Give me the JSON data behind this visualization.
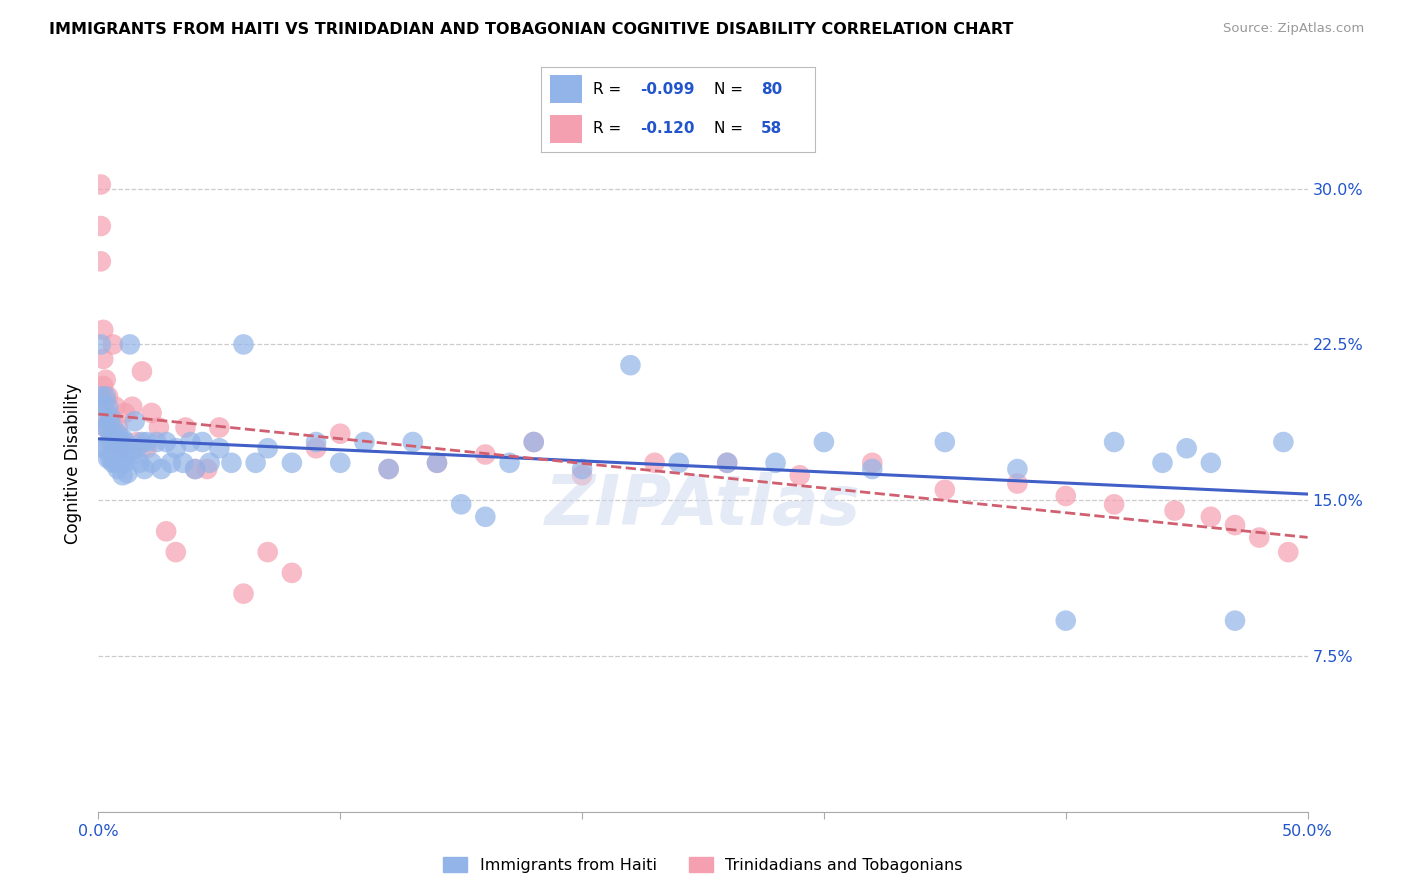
{
  "title": "IMMIGRANTS FROM HAITI VS TRINIDADIAN AND TOBAGONIAN COGNITIVE DISABILITY CORRELATION CHART",
  "source": "Source: ZipAtlas.com",
  "ylabel": "Cognitive Disability",
  "ytick_labels": [
    "7.5%",
    "15.0%",
    "22.5%",
    "30.0%"
  ],
  "ytick_values": [
    0.075,
    0.15,
    0.225,
    0.3
  ],
  "xtick_values": [
    0.0,
    0.1,
    0.2,
    0.3,
    0.4,
    0.5
  ],
  "xtick_labels_show": [
    "0.0%",
    "",
    "",
    "",
    "",
    "50.0%"
  ],
  "xmin": 0.0,
  "xmax": 0.5,
  "ymin": 0.0,
  "ymax": 0.335,
  "color_haiti": "#92b4e8",
  "color_tt": "#f4a0b0",
  "color_haiti_line": "#4060c8",
  "color_tt_line": "#d06070",
  "haiti_x": [
    0.001,
    0.001,
    0.002,
    0.002,
    0.002,
    0.003,
    0.003,
    0.003,
    0.004,
    0.004,
    0.004,
    0.005,
    0.005,
    0.005,
    0.006,
    0.006,
    0.006,
    0.007,
    0.007,
    0.008,
    0.008,
    0.009,
    0.009,
    0.01,
    0.01,
    0.011,
    0.011,
    0.012,
    0.012,
    0.013,
    0.014,
    0.015,
    0.016,
    0.017,
    0.018,
    0.019,
    0.02,
    0.022,
    0.024,
    0.026,
    0.028,
    0.03,
    0.032,
    0.035,
    0.038,
    0.04,
    0.043,
    0.046,
    0.05,
    0.055,
    0.06,
    0.065,
    0.07,
    0.08,
    0.09,
    0.1,
    0.11,
    0.12,
    0.13,
    0.14,
    0.15,
    0.16,
    0.17,
    0.18,
    0.2,
    0.22,
    0.24,
    0.26,
    0.28,
    0.3,
    0.32,
    0.35,
    0.38,
    0.4,
    0.42,
    0.44,
    0.45,
    0.46,
    0.47,
    0.49
  ],
  "haiti_y": [
    0.225,
    0.2,
    0.195,
    0.19,
    0.175,
    0.2,
    0.185,
    0.175,
    0.195,
    0.185,
    0.17,
    0.19,
    0.18,
    0.17,
    0.185,
    0.175,
    0.168,
    0.178,
    0.168,
    0.182,
    0.165,
    0.178,
    0.168,
    0.18,
    0.162,
    0.178,
    0.168,
    0.172,
    0.163,
    0.225,
    0.172,
    0.188,
    0.175,
    0.168,
    0.178,
    0.165,
    0.178,
    0.168,
    0.178,
    0.165,
    0.178,
    0.168,
    0.175,
    0.168,
    0.178,
    0.165,
    0.178,
    0.168,
    0.175,
    0.168,
    0.225,
    0.168,
    0.175,
    0.168,
    0.178,
    0.168,
    0.178,
    0.165,
    0.178,
    0.168,
    0.148,
    0.142,
    0.168,
    0.178,
    0.165,
    0.215,
    0.168,
    0.168,
    0.168,
    0.178,
    0.165,
    0.178,
    0.165,
    0.092,
    0.178,
    0.168,
    0.175,
    0.168,
    0.092,
    0.178
  ],
  "tt_x": [
    0.001,
    0.001,
    0.001,
    0.002,
    0.002,
    0.002,
    0.003,
    0.003,
    0.003,
    0.004,
    0.004,
    0.005,
    0.005,
    0.006,
    0.006,
    0.007,
    0.007,
    0.008,
    0.008,
    0.009,
    0.01,
    0.011,
    0.012,
    0.014,
    0.016,
    0.018,
    0.02,
    0.022,
    0.025,
    0.028,
    0.032,
    0.036,
    0.04,
    0.045,
    0.05,
    0.06,
    0.07,
    0.08,
    0.09,
    0.1,
    0.12,
    0.14,
    0.16,
    0.18,
    0.2,
    0.23,
    0.26,
    0.29,
    0.32,
    0.35,
    0.38,
    0.4,
    0.42,
    0.445,
    0.46,
    0.47,
    0.48,
    0.492
  ],
  "tt_y": [
    0.302,
    0.282,
    0.265,
    0.232,
    0.218,
    0.205,
    0.208,
    0.198,
    0.185,
    0.2,
    0.188,
    0.188,
    0.178,
    0.225,
    0.182,
    0.195,
    0.178,
    0.185,
    0.172,
    0.178,
    0.178,
    0.192,
    0.175,
    0.195,
    0.178,
    0.212,
    0.175,
    0.192,
    0.185,
    0.135,
    0.125,
    0.185,
    0.165,
    0.165,
    0.185,
    0.105,
    0.125,
    0.115,
    0.175,
    0.182,
    0.165,
    0.168,
    0.172,
    0.178,
    0.162,
    0.168,
    0.168,
    0.162,
    0.168,
    0.155,
    0.158,
    0.152,
    0.148,
    0.145,
    0.142,
    0.138,
    0.132,
    0.125
  ]
}
